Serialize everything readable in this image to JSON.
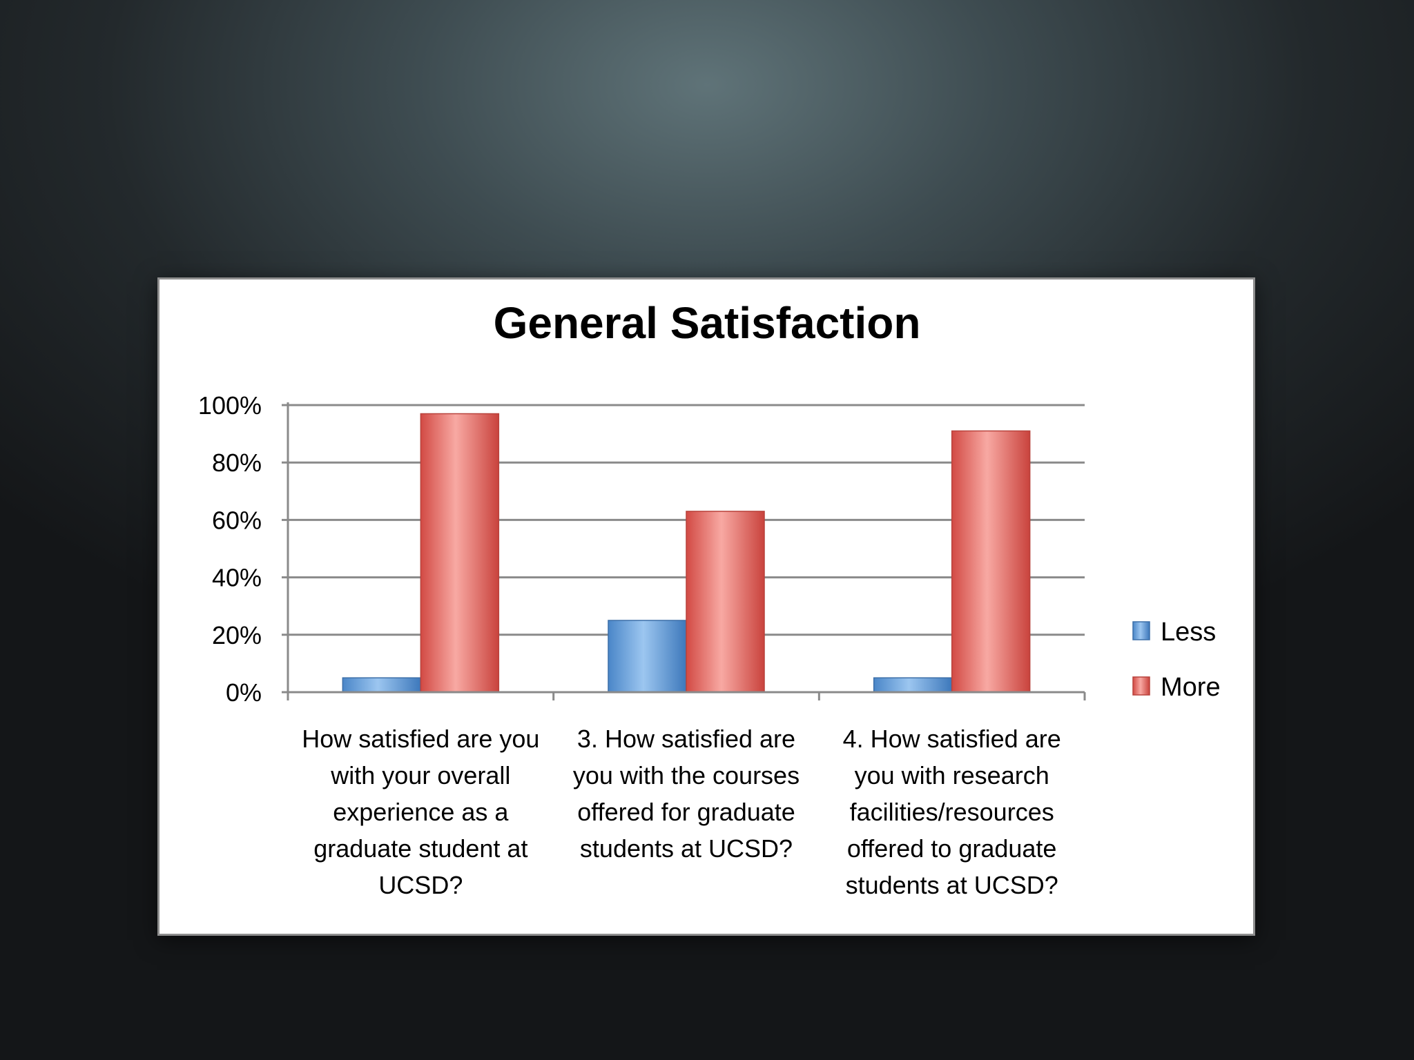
{
  "chart_data": {
    "type": "bar",
    "title": "General Satisfaction",
    "xlabel": "",
    "ylabel": "",
    "ylim": [
      0,
      100
    ],
    "yticks": [
      "0%",
      "20%",
      "40%",
      "60%",
      "80%",
      "100%"
    ],
    "categories": [
      [
        "How satisfied are you",
        "with your overall",
        "experience as a",
        "graduate student at",
        "UCSD?"
      ],
      [
        "3. How satisfied are",
        "you with the courses",
        "offered for graduate",
        "students at UCSD?"
      ],
      [
        "4. How satisfied are",
        "you with research",
        "facilities/resources",
        "offered to graduate",
        "students at UCSD?"
      ]
    ],
    "series": [
      {
        "name": "Less",
        "values": [
          5,
          25,
          5
        ],
        "color": "#5b9bd5"
      },
      {
        "name": "More",
        "values": [
          97,
          63,
          91
        ],
        "color": "#e0605a"
      }
    ],
    "grid": true,
    "legend_position": "right"
  }
}
